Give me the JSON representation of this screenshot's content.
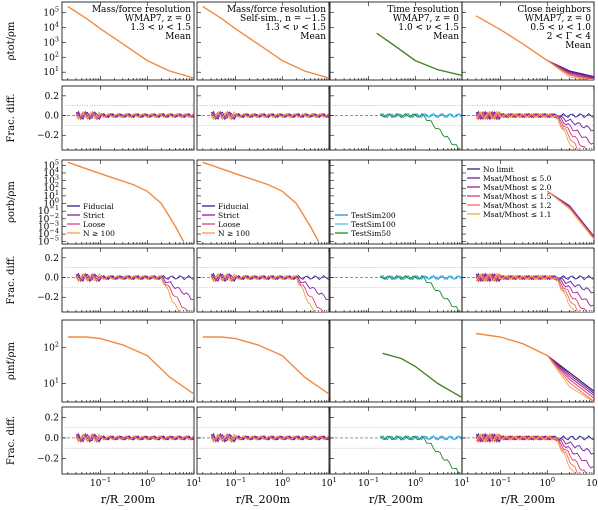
{
  "figure": {
    "xlabel": "r/R_200m",
    "row_ylabels": [
      "ρtot/ρm",
      "Frac. diff.",
      "ρorb/ρm",
      "Frac. diff.",
      "ρinf/ρm",
      "Frac. diff."
    ]
  },
  "column_annotations": [
    [
      "Mass/force resolution",
      "WMAP7, z = 0",
      "1.3 < ν < 1.5",
      "Mean"
    ],
    [
      "Mass/force resolution",
      "Self-sim., n = −1.5",
      "1.3 < ν < 1.5",
      "Mean"
    ],
    [
      "Time resolution",
      "WMAP7, z = 0",
      "1.0 < ν < 1.5",
      "Mean"
    ],
    [
      "Close neighbors",
      "WMAP7, z = 0",
      "0.5 < ν < 1.0",
      "2 < Γ < 4",
      "Mean"
    ]
  ],
  "legends": [
    [
      {
        "label": "Fiducial",
        "color": "#3b1f8c"
      },
      {
        "label": "Strict",
        "color": "#8a1fa0"
      },
      {
        "label": "Loose",
        "color": "#e0407a"
      },
      {
        "label": "N ≥ 100",
        "color": "#f0a040"
      }
    ],
    [
      {
        "label": "Fiducial",
        "color": "#3b1f8c"
      },
      {
        "label": "Strict",
        "color": "#8a1fa0"
      },
      {
        "label": "Loose",
        "color": "#e0407a"
      },
      {
        "label": "N ≥ 100",
        "color": "#f0a040"
      }
    ],
    [
      {
        "label": "TestSim200",
        "color": "#2b8cd8"
      },
      {
        "label": "TestSim100",
        "color": "#47c4e8"
      },
      {
        "label": "TestSim50",
        "color": "#1e8a2e"
      }
    ],
    [
      {
        "label": "No limit",
        "color": "#2a1f8c"
      },
      {
        "label": "Msat/Mhost ≤ 5.0",
        "color": "#6a1fa0"
      },
      {
        "label": "Msat/Mhost ≤ 2.0",
        "color": "#a0209a"
      },
      {
        "label": "Msat/Mhost ≤ 1.5",
        "color": "#d83a78"
      },
      {
        "label": "Msat/Mhost ≤ 1.2",
        "color": "#f06a60"
      },
      {
        "label": "Msat/Mhost ≤ 1.1",
        "color": "#f5a84a"
      }
    ]
  ],
  "chart_data": {
    "type": "line",
    "x_axis": {
      "scale": "log",
      "range": [
        0.015,
        10
      ],
      "tick_labels": [
        "10^-1",
        "10^0",
        "10^1"
      ]
    },
    "panels_rows": [
      {
        "row": "rho_tot",
        "scale": "log",
        "ylim": [
          3,
          500000
        ],
        "tick_labels": [
          "10^1",
          "10^2",
          "10^3",
          "10^4",
          "10^5"
        ]
      },
      {
        "row": "frac_diff_tot",
        "scale": "linear",
        "ylim": [
          -0.35,
          0.3
        ],
        "tick_labels": [
          "-0.2",
          "0.0",
          "0.2"
        ]
      },
      {
        "row": "rho_orb",
        "scale": "log",
        "ylim": [
          5e-06,
          500000
        ],
        "tick_labels": [
          "10^-5",
          "10^-4",
          "10^-3",
          "10^-2",
          "10^-1",
          "10^0",
          "10^1",
          "10^2",
          "10^3",
          "10^4",
          "10^5"
        ]
      },
      {
        "row": "frac_diff_orb",
        "scale": "linear",
        "ylim": [
          -0.35,
          0.3
        ],
        "tick_labels": [
          "-0.2",
          "0.0",
          "0.2"
        ]
      },
      {
        "row": "rho_inf",
        "scale": "log",
        "ylim": [
          3,
          600
        ],
        "tick_labels": [
          "10^1",
          "10^2"
        ]
      },
      {
        "row": "frac_diff_inf",
        "scale": "linear",
        "ylim": [
          -0.35,
          0.3
        ],
        "tick_labels": [
          "-0.2",
          "0.0",
          "0.2"
        ]
      }
    ],
    "series_description": [
      {
        "panel": "rho_tot col1-2",
        "points": [
          [
            0.02,
            250000
          ],
          [
            0.05,
            40000
          ],
          [
            0.1,
            8000
          ],
          [
            0.3,
            800
          ],
          [
            1,
            60
          ],
          [
            3,
            12
          ],
          [
            10,
            4
          ]
        ]
      },
      {
        "panel": "rho_tot col3",
        "points": [
          [
            0.15,
            4000
          ],
          [
            0.3,
            900
          ],
          [
            1,
            60
          ],
          [
            3,
            15
          ],
          [
            10,
            6
          ]
        ]
      },
      {
        "panel": "rho_tot col4",
        "points": [
          [
            0.03,
            60000
          ],
          [
            0.1,
            7000
          ],
          [
            0.3,
            800
          ],
          [
            1,
            60
          ],
          [
            3,
            12
          ],
          [
            10,
            5
          ]
        ]
      },
      {
        "panel": "rho_orb col1-2",
        "points": [
          [
            0.02,
            250000
          ],
          [
            0.1,
            8000
          ],
          [
            0.5,
            300
          ],
          [
            1,
            40
          ],
          [
            2,
            1
          ],
          [
            4,
            0.001
          ],
          [
            6,
            1e-05
          ]
        ]
      },
      {
        "panel": "rho_inf col1-2",
        "points": [
          [
            0.02,
            200
          ],
          [
            0.05,
            200
          ],
          [
            0.1,
            180
          ],
          [
            0.3,
            120
          ],
          [
            1,
            60
          ],
          [
            3,
            15
          ],
          [
            10,
            5
          ]
        ]
      },
      {
        "panel": "rho_inf col3",
        "points": [
          [
            0.2,
            70
          ],
          [
            0.5,
            50
          ],
          [
            1,
            30
          ],
          [
            3,
            10
          ],
          [
            10,
            4
          ]
        ]
      },
      {
        "panel": "rho_inf col4",
        "points": [
          [
            0.03,
            250
          ],
          [
            0.1,
            200
          ],
          [
            0.3,
            130
          ],
          [
            1,
            60
          ],
          [
            3,
            20
          ],
          [
            10,
            6
          ]
        ]
      }
    ]
  }
}
